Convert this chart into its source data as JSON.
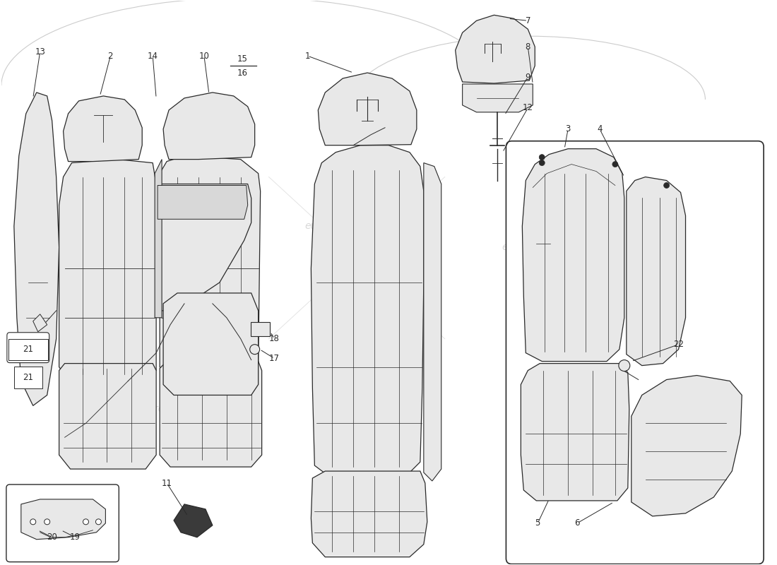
{
  "bg": "#ffffff",
  "lc": "#2a2a2a",
  "fill_light": "#e8e8e8",
  "fill_mid": "#d8d8d8",
  "wm_color": "#c8c8c8",
  "wm_text": "eurospares",
  "label_color": "#1a1a1a",
  "box_outline": "#2a2a2a"
}
